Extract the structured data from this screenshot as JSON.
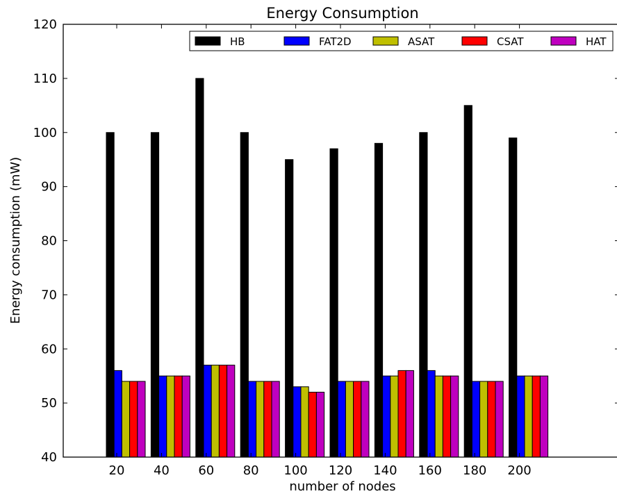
{
  "chart_data": {
    "type": "bar",
    "title": "Energy Consumption",
    "xlabel": "number of nodes",
    "ylabel": "Energy consumption (mW)",
    "ylim": [
      40,
      120
    ],
    "yticks": [
      40,
      50,
      60,
      70,
      80,
      90,
      100,
      110,
      120
    ],
    "categories": [
      "20",
      "40",
      "60",
      "80",
      "100",
      "120",
      "140",
      "160",
      "180",
      "200"
    ],
    "grid": false,
    "legend_position": "top-right",
    "series": [
      {
        "name": "HB",
        "color": "#000000",
        "values": [
          100,
          100,
          110,
          100,
          95,
          97,
          98,
          100,
          105,
          99
        ]
      },
      {
        "name": "FAT2D",
        "color": "#0000ff",
        "values": [
          56,
          55,
          57,
          54,
          53,
          54,
          55,
          56,
          54,
          55
        ]
      },
      {
        "name": "ASAT",
        "color": "#bfbf00",
        "values": [
          54,
          55,
          57,
          54,
          53,
          54,
          55,
          55,
          54,
          55
        ]
      },
      {
        "name": "CSAT",
        "color": "#ff0000",
        "values": [
          54,
          55,
          57,
          54,
          52,
          54,
          56,
          55,
          54,
          55
        ]
      },
      {
        "name": "HAT",
        "color": "#bf00bf",
        "values": [
          54,
          55,
          57,
          54,
          52,
          54,
          56,
          55,
          54,
          55
        ]
      }
    ]
  }
}
